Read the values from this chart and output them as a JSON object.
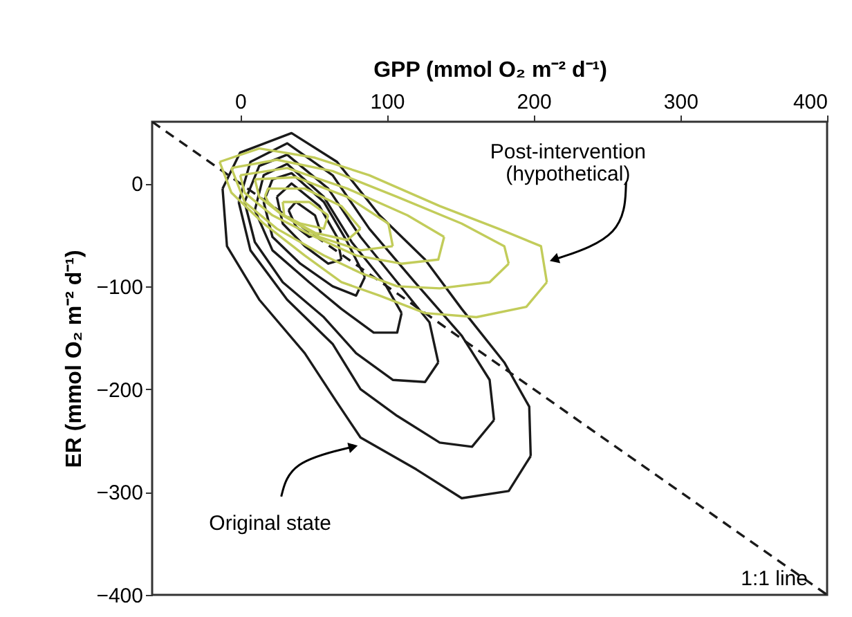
{
  "chart_data": {
    "type": "line",
    "xlabel": "GPP (mmol O₂ m⁻² d⁻¹)",
    "ylabel": "ER (mmol O₂ m⁻² d⁻¹)",
    "xlim": [
      -60,
      400
    ],
    "ylim": [
      -400,
      60
    ],
    "xticks": [
      0,
      100,
      200,
      300,
      400
    ],
    "yticks": [
      -400,
      -300,
      -200,
      -100,
      0
    ],
    "grid": false,
    "series": [
      {
        "name": "1:1 line",
        "color": "#1a1a1a",
        "line_style": "dashed",
        "x": [
          -60,
          400
        ],
        "values": [
          60,
          -400
        ]
      },
      {
        "color": "#1a1a1a",
        "x": [
          -12,
          0,
          35,
          66,
          95,
          126,
          151,
          180,
          197,
          198
        ],
        "values": [
          -5,
          30,
          49,
          21,
          -31,
          -74,
          -122,
          -174,
          -217,
          -265
        ]
      },
      {
        "color": "#1a1a1a",
        "x": [
          -12,
          -9,
          13,
          44,
          66,
          82,
          120,
          151,
          183,
          198
        ],
        "values": [
          -5,
          -61,
          -113,
          -165,
          -213,
          -247,
          -278,
          -306,
          -299,
          -265
        ]
      },
      {
        "color": "#1a1a1a",
        "x": [
          -1,
          7,
          32,
          63,
          88,
          119,
          151,
          170,
          173
        ],
        "values": [
          -18,
          21,
          39,
          8,
          -44,
          -96,
          -148,
          -191,
          -230
        ]
      },
      {
        "color": "#1a1a1a",
        "x": [
          -1,
          7,
          32,
          63,
          82,
          107,
          136,
          158,
          173
        ],
        "values": [
          -18,
          -65,
          -113,
          -156,
          -200,
          -226,
          -252,
          -256,
          -230
        ]
      },
      {
        "color": "#1a1a1a",
        "x": [
          3,
          13,
          32,
          60,
          82,
          107,
          129,
          135
        ],
        "values": [
          -18,
          17,
          28,
          -5,
          -52,
          -96,
          -135,
          -174
        ]
      },
      {
        "color": "#1a1a1a",
        "x": [
          3,
          10,
          29,
          57,
          79,
          104,
          126,
          135
        ],
        "values": [
          -18,
          -57,
          -96,
          -130,
          -165,
          -191,
          -193,
          -174
        ]
      },
      {
        "color": "#1a1a1a",
        "x": [
          10,
          16,
          32,
          57,
          76,
          98,
          110
        ],
        "values": [
          -26,
          8,
          19,
          -13,
          -57,
          -96,
          -126
        ]
      },
      {
        "color": "#1a1a1a",
        "x": [
          10,
          22,
          47,
          69,
          91,
          107,
          110
        ],
        "values": [
          -26,
          -65,
          -96,
          -122,
          -145,
          -145,
          -126
        ]
      },
      {
        "color": "#1a1a1a",
        "x": [
          16,
          22,
          35,
          57,
          73,
          85
        ],
        "values": [
          -18,
          4,
          10,
          -18,
          -57,
          -91
        ]
      },
      {
        "color": "#1a1a1a",
        "x": [
          16,
          22,
          41,
          63,
          79,
          85
        ],
        "values": [
          -18,
          -52,
          -78,
          -100,
          -109,
          -91
        ]
      },
      {
        "color": "#1a1a1a",
        "x": [
          25,
          35,
          54,
          66,
          69
        ],
        "values": [
          -13,
          0,
          -22,
          -52,
          -74
        ]
      },
      {
        "color": "#1a1a1a",
        "x": [
          25,
          29,
          44,
          60,
          69
        ],
        "values": [
          -13,
          -39,
          -61,
          -78,
          -74
        ]
      },
      {
        "color": "#1a1a1a",
        "x": [
          33,
          38,
          51,
          55
        ],
        "values": [
          -26,
          -18,
          -31,
          -48
        ]
      },
      {
        "color": "#1a1a1a",
        "x": [
          33,
          38,
          47,
          55
        ],
        "values": [
          -26,
          -42,
          -52,
          -48
        ]
      },
      {
        "color": "#c2cc5a",
        "x": [
          -14,
          13,
          51,
          88,
          136,
          176,
          205,
          209
        ],
        "values": [
          21,
          34,
          25,
          8,
          -22,
          -44,
          -61,
          -96
        ]
      },
      {
        "color": "#c2cc5a",
        "x": [
          -14,
          -6,
          16,
          44,
          69,
          95,
          126,
          161,
          195,
          209
        ],
        "values": [
          21,
          -9,
          -39,
          -70,
          -96,
          -109,
          -126,
          -130,
          -120,
          -96
        ]
      },
      {
        "color": "#c2cc5a",
        "x": [
          -6,
          25,
          63,
          107,
          151,
          180,
          183
        ],
        "values": [
          15,
          23,
          12,
          -13,
          -39,
          -61,
          -78
        ]
      },
      {
        "color": "#c2cc5a",
        "x": [
          -6,
          3,
          25,
          57,
          82,
          107,
          136,
          170,
          183
        ],
        "values": [
          15,
          -18,
          -44,
          -70,
          -87,
          -100,
          -102,
          -96,
          -78
        ]
      },
      {
        "color": "#c2cc5a",
        "x": [
          0,
          32,
          73,
          114,
          139
        ],
        "values": [
          8,
          15,
          -5,
          -31,
          -52
        ]
      },
      {
        "color": "#c2cc5a",
        "x": [
          0,
          3,
          22,
          51,
          79,
          110,
          135,
          139
        ],
        "values": [
          8,
          -9,
          -31,
          -52,
          -70,
          -78,
          -74,
          -52
        ]
      },
      {
        "color": "#c2cc5a",
        "x": [
          10,
          38,
          73,
          101,
          104
        ],
        "values": [
          4,
          6,
          -13,
          -39,
          -61
        ]
      },
      {
        "color": "#c2cc5a",
        "x": [
          10,
          13,
          29,
          54,
          82,
          104
        ],
        "values": [
          4,
          -13,
          -31,
          -52,
          -65,
          -61
        ]
      },
      {
        "color": "#c2cc5a",
        "x": [
          17,
          19,
          44,
          69,
          82
        ],
        "values": [
          -12,
          -5,
          -5,
          -22,
          -44
        ]
      },
      {
        "color": "#c2cc5a",
        "x": [
          17,
          19,
          29,
          51,
          73,
          82
        ],
        "values": [
          -12,
          -18,
          -31,
          -48,
          -55,
          -44
        ]
      },
      {
        "color": "#c2cc5a",
        "x": [
          29,
          47,
          60
        ],
        "values": [
          -18,
          -18,
          -31
        ]
      },
      {
        "color": "#c2cc5a",
        "x": [
          29,
          30,
          41,
          57,
          60
        ],
        "values": [
          -18,
          -31,
          -39,
          -44,
          -31
        ]
      }
    ],
    "annotations": [
      {
        "text": "Post-intervention\n(hypothetical)",
        "x": 214,
        "y": -74
      },
      {
        "text": "Original state",
        "x": 77,
        "y": -256
      }
    ]
  }
}
